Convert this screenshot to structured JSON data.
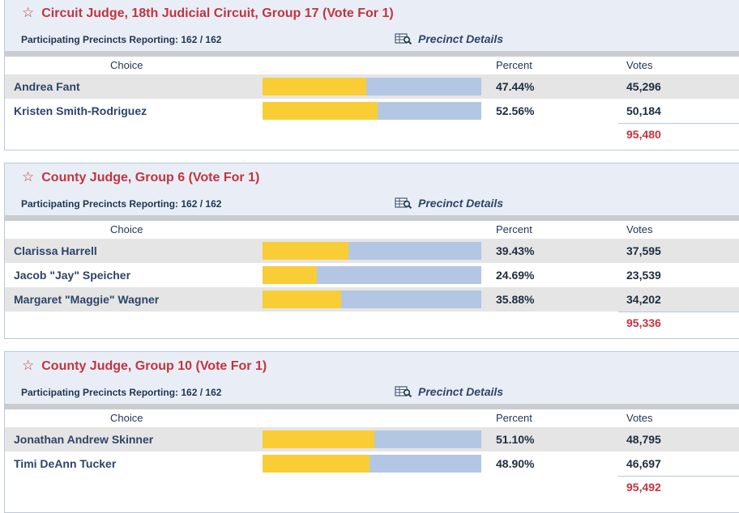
{
  "colors": {
    "title": "#c4333e",
    "bar_fill": "#f9cd35",
    "bar_track": "#b3c7e5",
    "header_bg": "#e9eef6",
    "row_shade": "#e5e5e5"
  },
  "races": [
    {
      "star_icon": "star-outline-icon",
      "title": "Circuit Judge, 18th Judicial Circuit, Group 17 (Vote For 1)",
      "precincts": "Participating Precincts Reporting: 162 / 162",
      "details_label": "Precinct Details",
      "col_choice": "Choice",
      "col_percent": "Percent",
      "col_votes": "Votes",
      "candidates": [
        {
          "name": "Andrea Fant",
          "percent": "47.44%",
          "share": 47.44,
          "votes": "45,296"
        },
        {
          "name": "Kristen Smith-Rodriguez",
          "percent": "52.56%",
          "share": 52.56,
          "votes": "50,184"
        }
      ],
      "total": "95,480"
    },
    {
      "star_icon": "star-outline-icon",
      "title": "County Judge, Group 6 (Vote For 1)",
      "precincts": "Participating Precincts Reporting: 162 / 162",
      "details_label": "Precinct Details",
      "col_choice": "Choice",
      "col_percent": "Percent",
      "col_votes": "Votes",
      "candidates": [
        {
          "name": "Clarissa Harrell",
          "percent": "39.43%",
          "share": 39.43,
          "votes": "37,595"
        },
        {
          "name": "Jacob \"Jay\" Speicher",
          "percent": "24.69%",
          "share": 24.69,
          "votes": "23,539"
        },
        {
          "name": "Margaret \"Maggie\" Wagner",
          "percent": "35.88%",
          "share": 35.88,
          "votes": "34,202"
        }
      ],
      "total": "95,336"
    },
    {
      "star_icon": "star-outline-icon",
      "title": "County Judge, Group 10 (Vote For 1)",
      "precincts": "Participating Precincts Reporting: 162 / 162",
      "details_label": "Precinct Details",
      "col_choice": "Choice",
      "col_percent": "Percent",
      "col_votes": "Votes",
      "candidates": [
        {
          "name": "Jonathan Andrew Skinner",
          "percent": "51.10%",
          "share": 51.1,
          "votes": "48,795"
        },
        {
          "name": "Timi DeAnn Tucker",
          "percent": "48.90%",
          "share": 48.9,
          "votes": "46,697"
        }
      ],
      "total": "95,492"
    }
  ]
}
